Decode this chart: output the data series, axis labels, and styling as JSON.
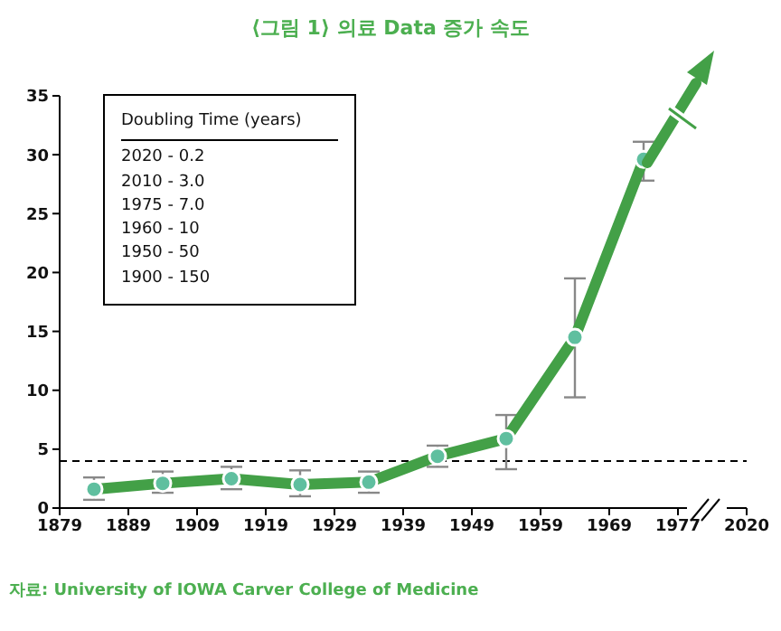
{
  "chart_data": {
    "type": "line",
    "title": "⟨그림 1⟩ 의료 Data 증가 속도",
    "categories": [
      "1879",
      null,
      "1889",
      null,
      "1909",
      null,
      "1919",
      null,
      "1929",
      null,
      "1939",
      null,
      "1949",
      null,
      "1959",
      null,
      "1969",
      null,
      "1977",
      null,
      "2020"
    ],
    "series": [
      {
        "color": "#43a047",
        "values": [
          null,
          1.6,
          null,
          2.1,
          null,
          2.5,
          null,
          2.0,
          null,
          2.2,
          null,
          4.4,
          null,
          5.9,
          null,
          14.5,
          null,
          29.6,
          null,
          null,
          null
        ],
        "errors": [
          null,
          [
            0.7,
            2.6
          ],
          null,
          [
            1.3,
            3.1
          ],
          null,
          [
            1.6,
            3.5
          ],
          null,
          [
            1.0,
            3.2
          ],
          null,
          [
            1.3,
            3.1
          ],
          null,
          [
            3.5,
            5.3
          ],
          null,
          [
            3.3,
            7.9
          ],
          null,
          [
            9.4,
            19.5
          ],
          null,
          [
            27.8,
            31.1
          ],
          null,
          null,
          null
        ]
      }
    ],
    "ylim": [
      0,
      35
    ],
    "yticks": [
      0,
      5,
      10,
      15,
      20,
      25,
      30,
      35
    ],
    "ref_lines": [
      {
        "axis": "y",
        "value": 4,
        "color": "#000000",
        "line_style": "dashed"
      }
    ],
    "marker": "circle",
    "annotations": [
      "Doubling Time (years)",
      "2020 - 0.2",
      "2010 - 3.0",
      "1975 - 7.0",
      "1960 - 10",
      "1950 - 50",
      "1900 - 150",
      "자료: University of IOWA Carver College of Medicine"
    ]
  }
}
